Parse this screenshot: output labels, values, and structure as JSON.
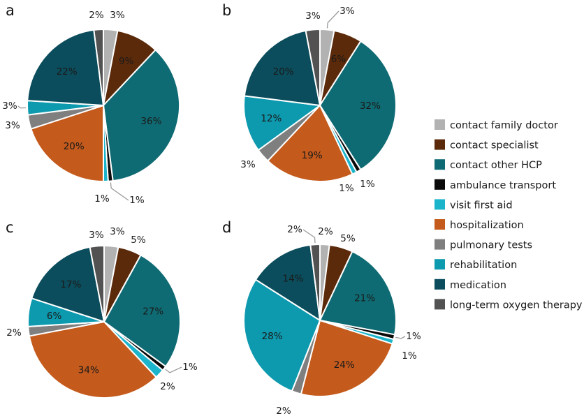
{
  "chart_data": {
    "type": "pie",
    "colors": {
      "contact family doctor": "#b2b2b2",
      "contact specialist": "#5b2a0a",
      "contact other HCP": "#0f6b73",
      "ambulance transport": "#0a0a0a",
      "visit first aid": "#1cb4cb",
      "hospitalization": "#c45a1c",
      "pulmonary tests": "#7f7f7f",
      "rehabilitation": "#0d9aaf",
      "medication": "#0b4d5c",
      "long-term oxygen therapy": "#525252"
    },
    "legend": [
      "contact family doctor",
      "contact specialist",
      "contact other HCP",
      "ambulance transport",
      "visit first aid",
      "hospitalization",
      "pulmonary tests",
      "rehabilitation",
      "medication",
      "long-term oxygen therapy"
    ],
    "legend_placement": "right",
    "charts": [
      {
        "panel": "a",
        "slices": [
          {
            "category": "contact family doctor",
            "value": 3,
            "label": "3%"
          },
          {
            "category": "contact specialist",
            "value": 9,
            "label": "9%"
          },
          {
            "category": "contact other HCP",
            "value": 36,
            "label": "36%"
          },
          {
            "category": "ambulance transport",
            "value": 1,
            "label": "1%"
          },
          {
            "category": "visit first aid",
            "value": 1,
            "label": "1%"
          },
          {
            "category": "hospitalization",
            "value": 20,
            "label": "20%"
          },
          {
            "category": "pulmonary tests",
            "value": 3,
            "label": "3%"
          },
          {
            "category": "rehabilitation",
            "value": 3,
            "label": "3%"
          },
          {
            "category": "medication",
            "value": 22,
            "label": "22%"
          },
          {
            "category": "long-term oxygen therapy",
            "value": 2,
            "label": "2%"
          }
        ]
      },
      {
        "panel": "b",
        "slices": [
          {
            "category": "contact family doctor",
            "value": 3,
            "label": "3%"
          },
          {
            "category": "contact specialist",
            "value": 6,
            "label": "6%"
          },
          {
            "category": "contact other HCP",
            "value": 32,
            "label": "32%"
          },
          {
            "category": "ambulance transport",
            "value": 1,
            "label": "1%"
          },
          {
            "category": "visit first aid",
            "value": 1,
            "label": "1%"
          },
          {
            "category": "hospitalization",
            "value": 19,
            "label": "19%"
          },
          {
            "category": "pulmonary tests",
            "value": 3,
            "label": "3%"
          },
          {
            "category": "rehabilitation",
            "value": 12,
            "label": "12%"
          },
          {
            "category": "medication",
            "value": 20,
            "label": "20%"
          },
          {
            "category": "long-term oxygen therapy",
            "value": 3,
            "label": "3%"
          }
        ]
      },
      {
        "panel": "c",
        "slices": [
          {
            "category": "contact family doctor",
            "value": 3,
            "label": "3%"
          },
          {
            "category": "contact specialist",
            "value": 5,
            "label": "5%"
          },
          {
            "category": "contact other HCP",
            "value": 27,
            "label": "27%"
          },
          {
            "category": "ambulance transport",
            "value": 1,
            "label": "1%"
          },
          {
            "category": "visit first aid",
            "value": 2,
            "label": "2%"
          },
          {
            "category": "hospitalization",
            "value": 34,
            "label": "34%"
          },
          {
            "category": "pulmonary tests",
            "value": 2,
            "label": "2%"
          },
          {
            "category": "rehabilitation",
            "value": 6,
            "label": "6%"
          },
          {
            "category": "medication",
            "value": 17,
            "label": "17%"
          },
          {
            "category": "long-term oxygen therapy",
            "value": 3,
            "label": "3%"
          }
        ]
      },
      {
        "panel": "d",
        "slices": [
          {
            "category": "contact family doctor",
            "value": 2,
            "label": "2%"
          },
          {
            "category": "contact specialist",
            "value": 5,
            "label": "5%"
          },
          {
            "category": "contact other HCP",
            "value": 21,
            "label": "21%"
          },
          {
            "category": "ambulance transport",
            "value": 1,
            "label": "1%"
          },
          {
            "category": "visit first aid",
            "value": 1,
            "label": "1%"
          },
          {
            "category": "hospitalization",
            "value": 24,
            "label": "24%"
          },
          {
            "category": "pulmonary tests",
            "value": 2,
            "label": "2%"
          },
          {
            "category": "rehabilitation",
            "value": 28,
            "label": "28%"
          },
          {
            "category": "medication",
            "value": 14,
            "label": "14%"
          },
          {
            "category": "long-term oxygen therapy",
            "value": 2,
            "label": "2%"
          }
        ]
      }
    ]
  }
}
